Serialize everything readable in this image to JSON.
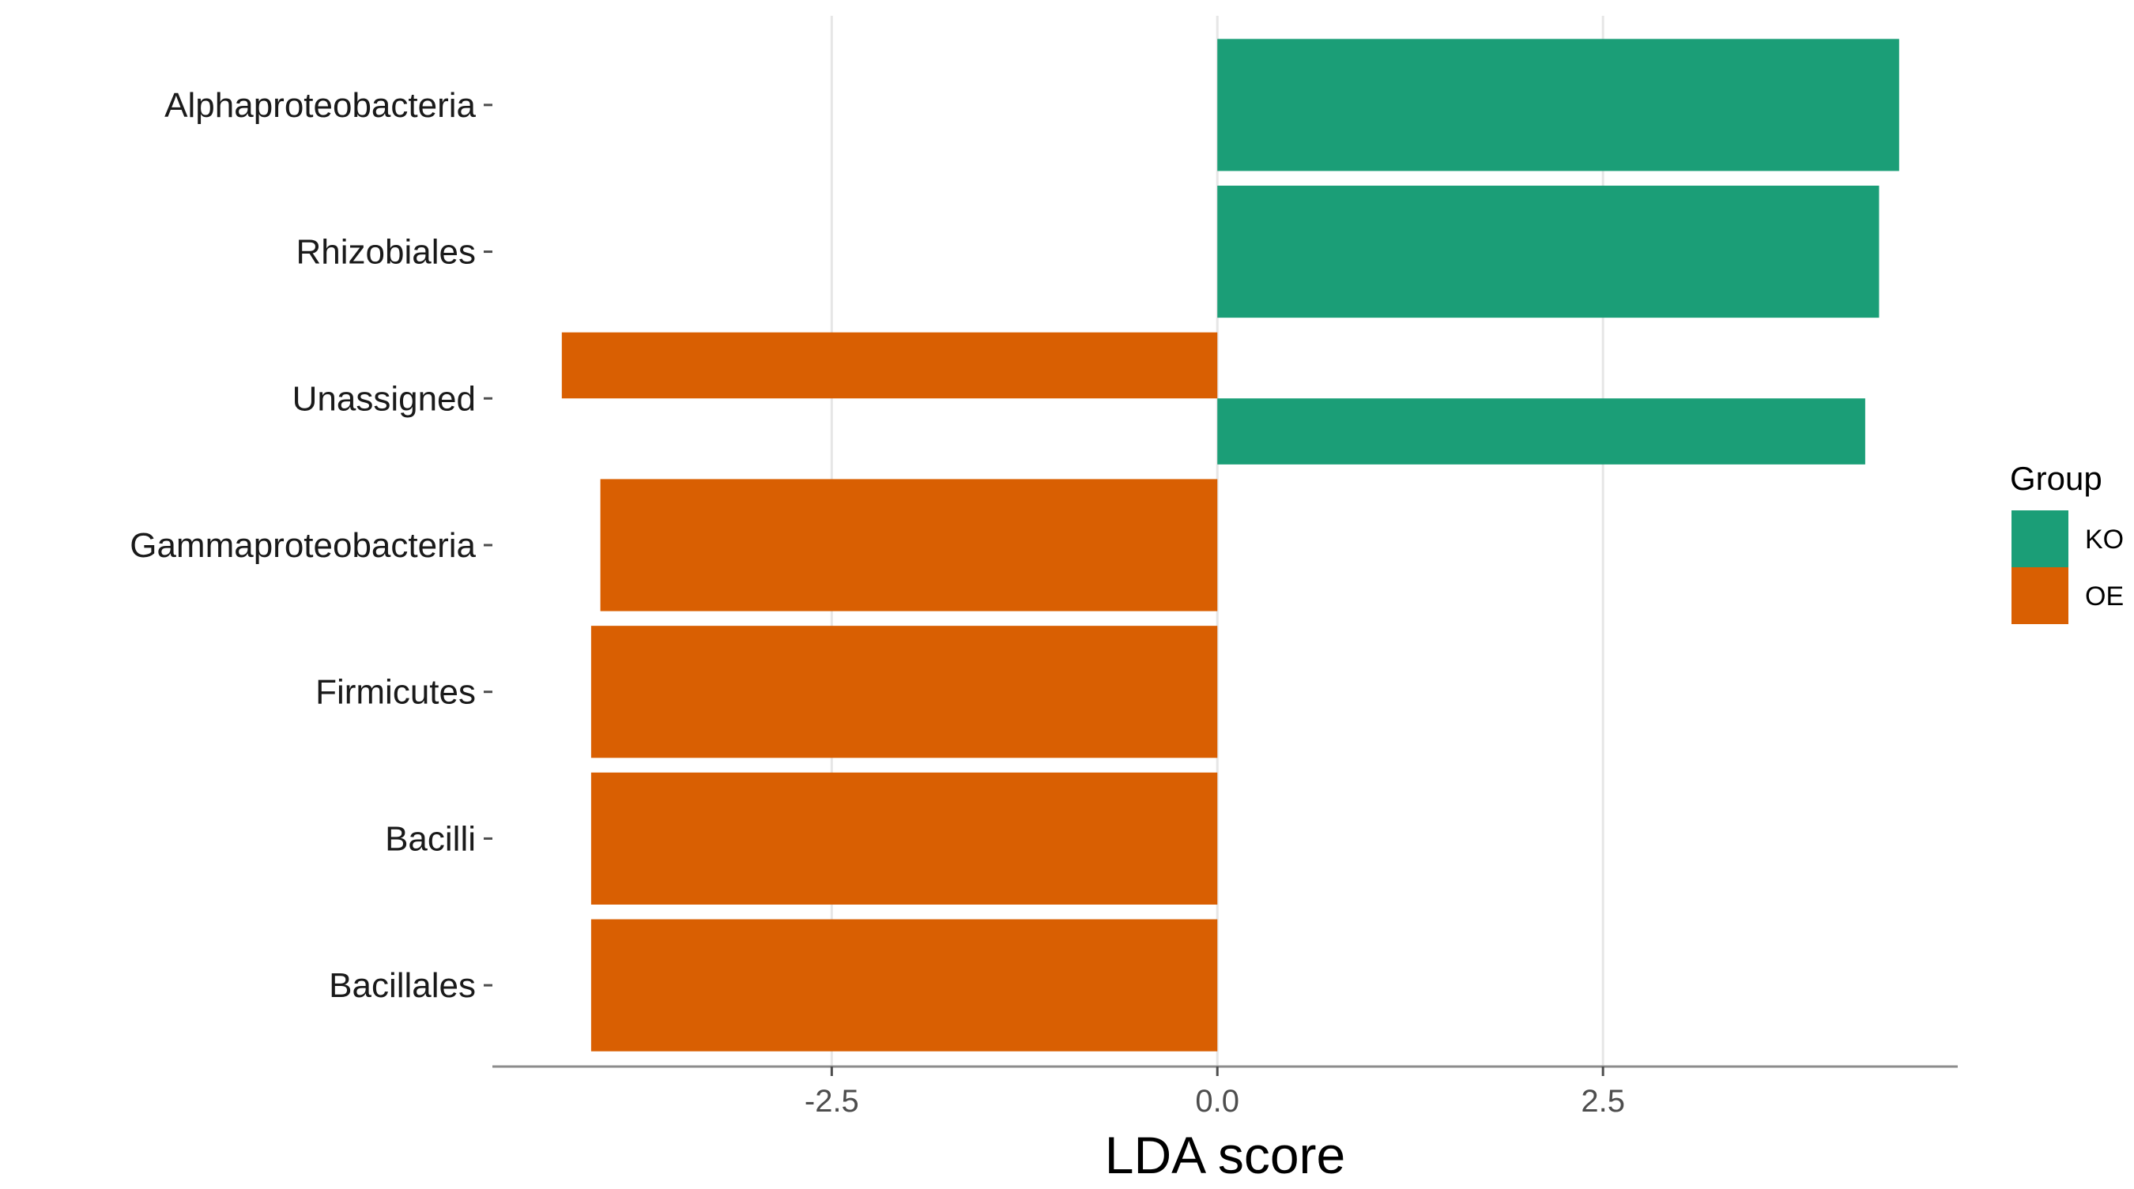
{
  "chart_data": {
    "type": "bar",
    "orientation": "horizontal",
    "categories": [
      "Alphaproteobacteria",
      "Rhizobiales",
      "Unassigned",
      "Gammaproteobacteria",
      "Firmicutes",
      "Bacilli",
      "Bacillales"
    ],
    "bars": [
      {
        "category": "Alphaproteobacteria",
        "group": "KO",
        "value": 4.42
      },
      {
        "category": "Rhizobiales",
        "group": "KO",
        "value": 4.29
      },
      {
        "category": "Unassigned",
        "group": "OE",
        "value": -4.25
      },
      {
        "category": "Unassigned",
        "group": "KO",
        "value": 4.2
      },
      {
        "category": "Gammaproteobacteria",
        "group": "OE",
        "value": -4.0
      },
      {
        "category": "Firmicutes",
        "group": "OE",
        "value": -4.06
      },
      {
        "category": "Bacilli",
        "group": "OE",
        "value": -4.06
      },
      {
        "category": "Bacillales",
        "group": "OE",
        "value": -4.06
      }
    ],
    "xlabel": "LDA score",
    "ylabel": "",
    "xlim": [
      -4.7,
      4.8
    ],
    "xticks": [
      -2.5,
      0.0,
      2.5
    ],
    "xtick_labels": [
      "-2.5",
      "0.0",
      "2.5"
    ],
    "grid": "vertical major",
    "legend": {
      "title": "Group",
      "position": "right",
      "entries": [
        {
          "label": "KO",
          "color": "#1b9e77"
        },
        {
          "label": "OE",
          "color": "#d95f02"
        }
      ]
    },
    "colors": {
      "KO": "#1b9e77",
      "OE": "#d95f02"
    }
  }
}
